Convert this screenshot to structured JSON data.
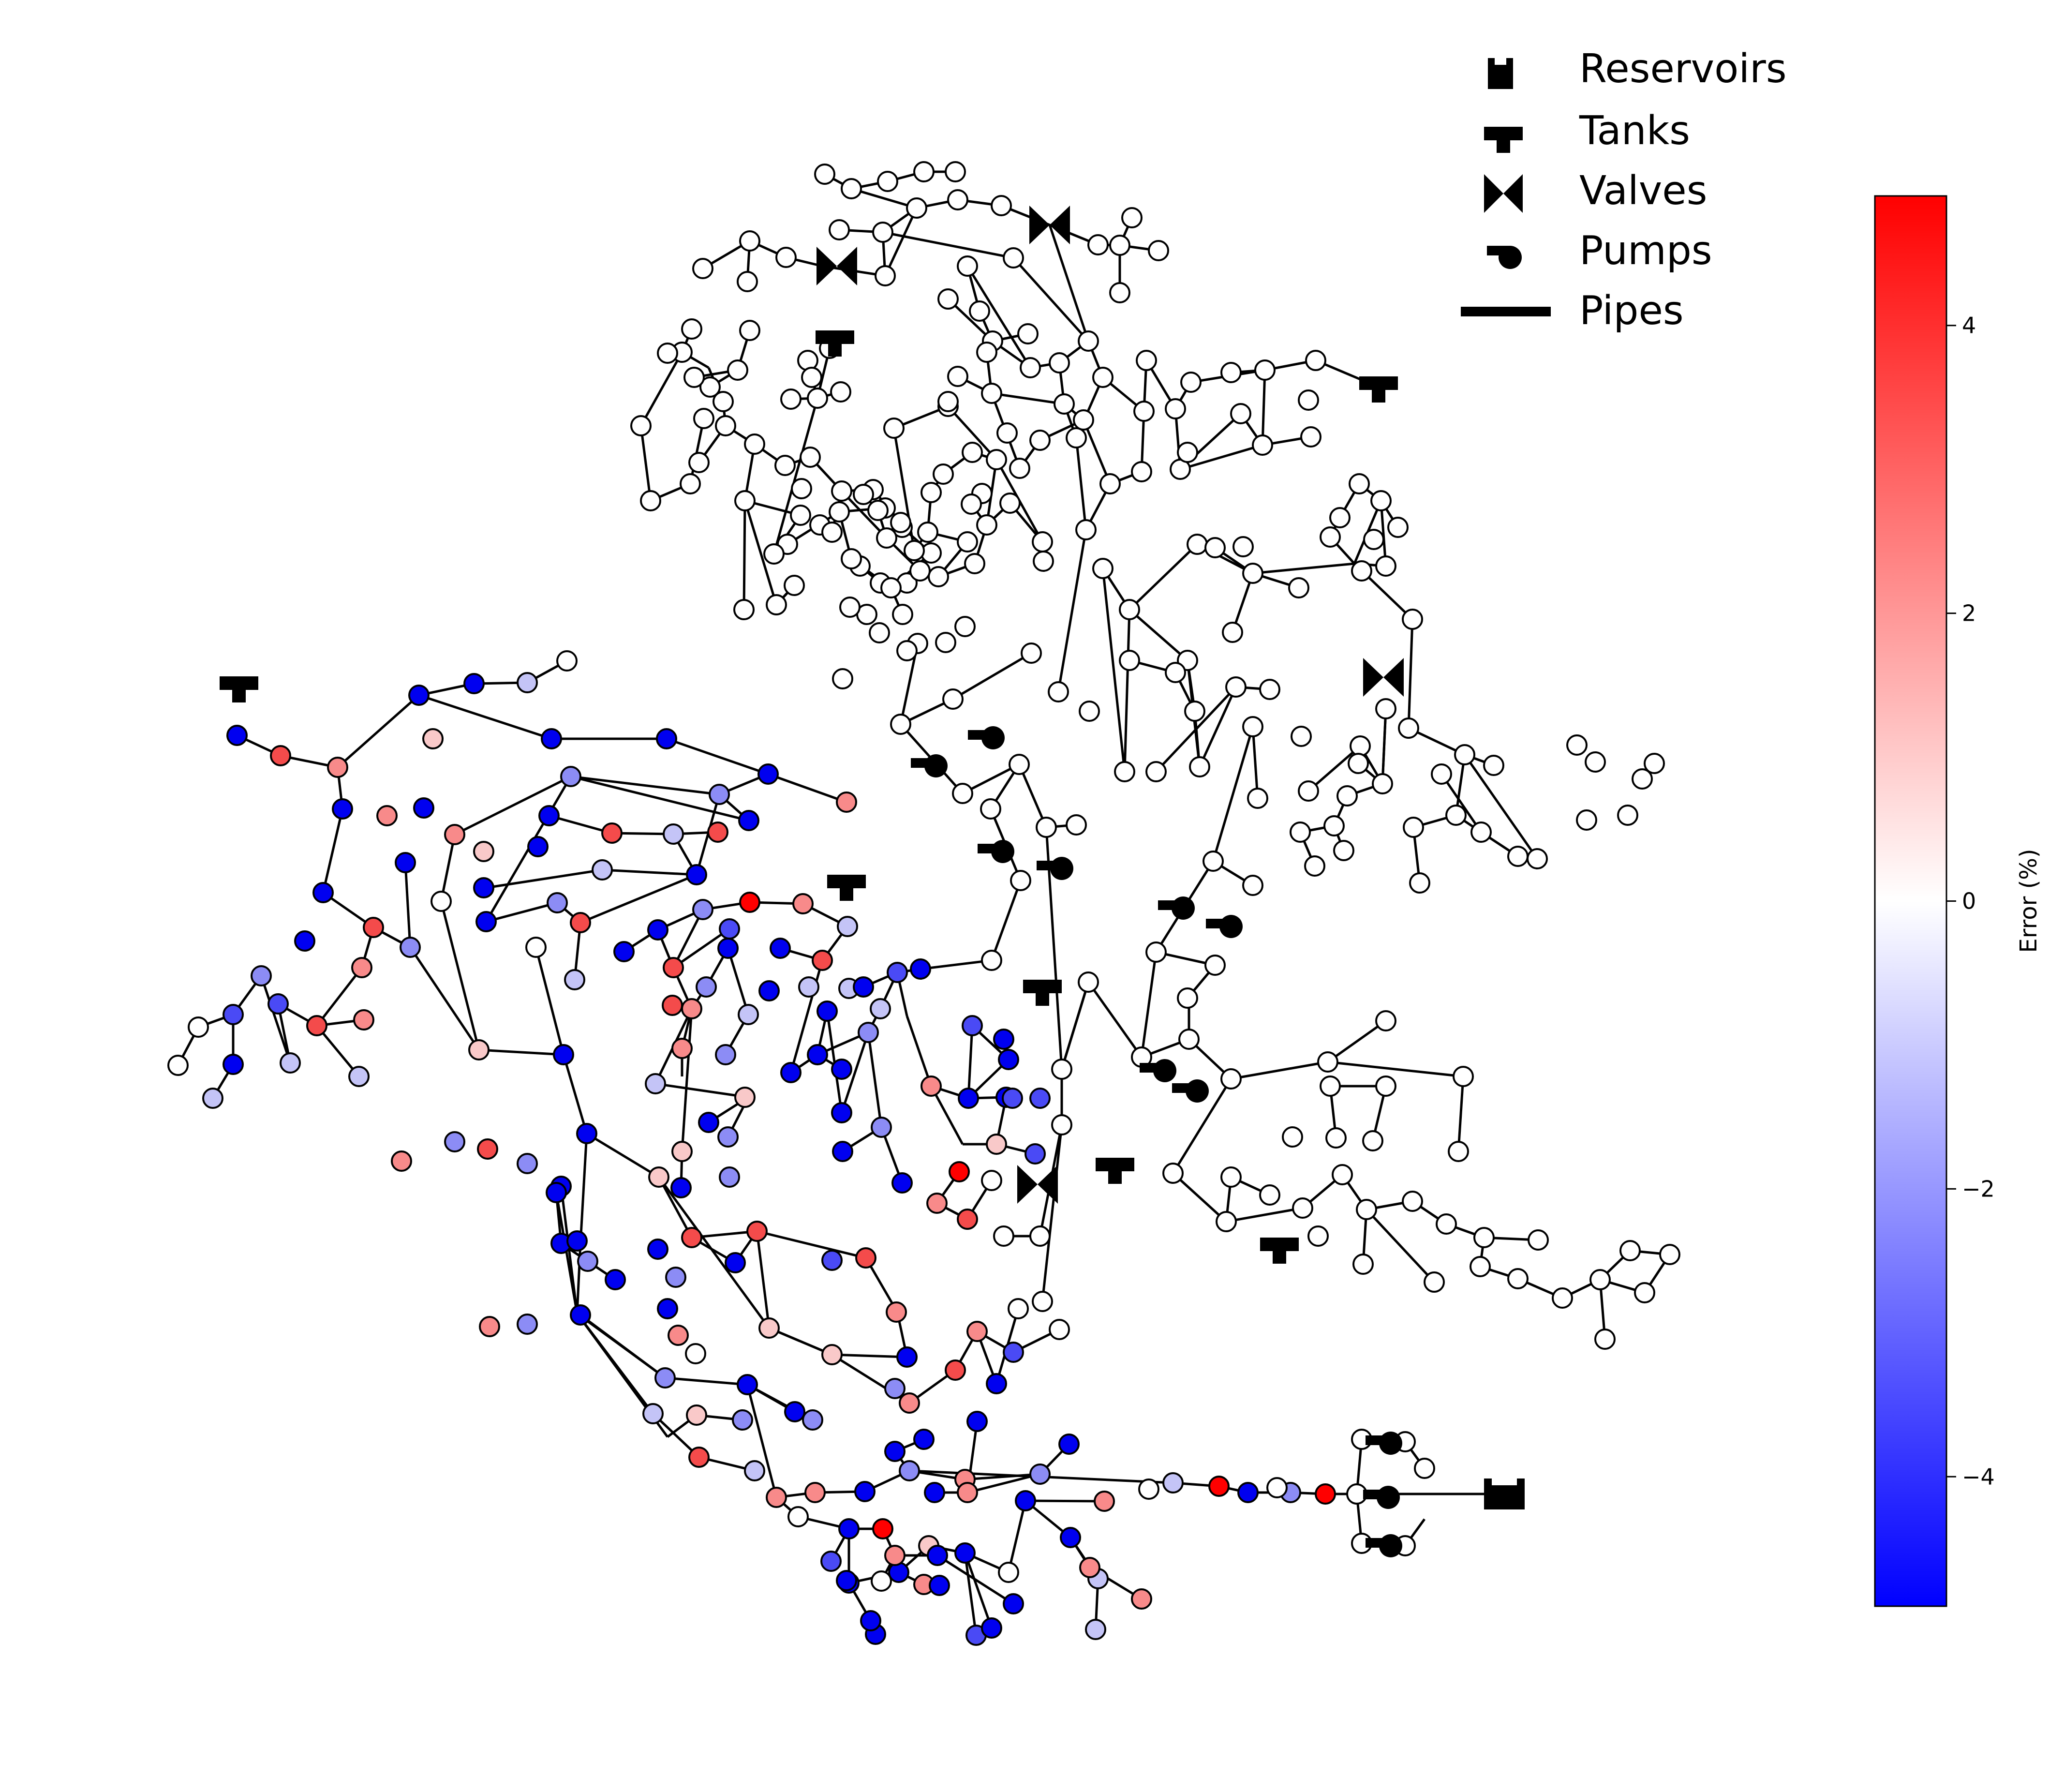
{
  "legend": {
    "items": [
      {
        "key": "reservoir",
        "label": "Reservoirs"
      },
      {
        "key": "tank",
        "label": "Tanks"
      },
      {
        "key": "valve",
        "label": "Valves"
      },
      {
        "key": "pump",
        "label": "Pumps"
      },
      {
        "key": "pipe",
        "label": "Pipes"
      }
    ]
  },
  "colorbar": {
    "label": "Error (%)",
    "min": -4.9,
    "max": 4.9,
    "ticks": [
      {
        "value": 4,
        "label": "4"
      },
      {
        "value": 2,
        "label": "2"
      },
      {
        "value": 0,
        "label": "0"
      },
      {
        "value": -2,
        "label": "−2"
      },
      {
        "value": -4,
        "label": "−4"
      }
    ],
    "colors": {
      "low": "#0000ff",
      "mid": "#ffffff",
      "high": "#ff0000"
    }
  },
  "network": {
    "node_fill_default": "#ffffff",
    "edge_color": "#000000",
    "nodes_with_error_values": "mixed range from about -4.9% (blue) to +4.9% (red); north and east branches show no error (white)"
  }
}
